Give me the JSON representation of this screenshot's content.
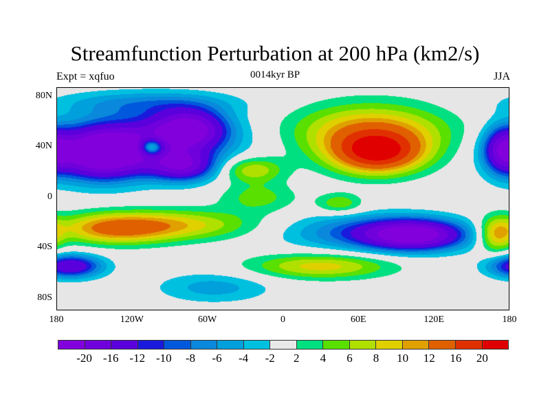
{
  "chart_data": {
    "type": "heatmap",
    "title": "Streamfunction Perturbation at 200 hPa (km2/s)",
    "left_string": "Expt = xqfuo",
    "center_string": "0014kyr BP",
    "right_string": "JJA",
    "x_ticks": [
      "180",
      "120W",
      "60W",
      "0",
      "60E",
      "120E",
      "180"
    ],
    "x_tick_values": [
      -180,
      -120,
      -60,
      0,
      60,
      120,
      180
    ],
    "y_ticks": [
      "80N",
      "40N",
      "0",
      "40S",
      "80S"
    ],
    "y_tick_values": [
      80,
      40,
      0,
      -40,
      -80
    ],
    "xlim": [
      -180,
      180
    ],
    "ylim": [
      -90,
      87
    ],
    "levels": [
      -20,
      -16,
      -12,
      -10,
      -8,
      -6,
      -4,
      -2,
      2,
      4,
      6,
      8,
      10,
      12,
      16,
      20
    ],
    "level_labels": [
      "-20",
      "-16",
      "-12",
      "-10",
      "-8",
      "-6",
      "-4",
      "-2",
      "2",
      "4",
      "6",
      "8",
      "10",
      "12",
      "16",
      "20"
    ],
    "colors": [
      "#8200dc",
      "#7000dc",
      "#5a00dc",
      "#1a1adc",
      "#0058dc",
      "#0a88dc",
      "#00a0dc",
      "#00c0e0",
      "#e8e8e8",
      "#00e080",
      "#5ae000",
      "#b0e000",
      "#e0d000",
      "#e0a000",
      "#e06000",
      "#e03000",
      "#e00000"
    ],
    "background": "#e6e6e6",
    "features": [
      {
        "lon": -145,
        "lat": 35,
        "value": -26,
        "slon": 38,
        "slat": 20
      },
      {
        "lon": 175,
        "lat": 38,
        "value": -14,
        "slon": 15,
        "slat": 18
      },
      {
        "lon": -75,
        "lat": 55,
        "value": -18,
        "slon": 28,
        "slat": 15
      },
      {
        "lon": -80,
        "lat": 25,
        "value": -16,
        "slon": 25,
        "slat": 12
      },
      {
        "lon": -100,
        "lat": 45,
        "value": -12,
        "slon": 60,
        "slat": 22
      },
      {
        "lon": -105,
        "lat": 40,
        "value": 18,
        "slon": 10,
        "slat": 7
      },
      {
        "lon": 75,
        "lat": 35,
        "value": 18,
        "slon": 35,
        "slat": 16
      },
      {
        "lon": 70,
        "lat": 52,
        "value": 12,
        "slon": 60,
        "slat": 22
      },
      {
        "lon": -25,
        "lat": 22,
        "value": 8,
        "slon": 25,
        "slat": 10
      },
      {
        "lon": 45,
        "lat": -5,
        "value": 6,
        "slon": 18,
        "slat": 8
      },
      {
        "lon": -135,
        "lat": -25,
        "value": 12,
        "slon": 45,
        "slat": 12
      },
      {
        "lon": -80,
        "lat": -22,
        "value": 8,
        "slon": 60,
        "slat": 12
      },
      {
        "lon": 105,
        "lat": -30,
        "value": -22,
        "slon": 40,
        "slat": 12
      },
      {
        "lon": 60,
        "lat": -28,
        "value": -8,
        "slon": 60,
        "slat": 14
      },
      {
        "lon": 30,
        "lat": -55,
        "value": 9,
        "slon": 55,
        "slat": 10
      },
      {
        "lon": -170,
        "lat": -55,
        "value": -16,
        "slon": 25,
        "slat": 9
      },
      {
        "lon": -55,
        "lat": -72,
        "value": -5,
        "slon": 45,
        "slat": 12
      },
      {
        "lon": 170,
        "lat": -30,
        "value": 10,
        "slon": 14,
        "slat": 14
      },
      {
        "lon": -20,
        "lat": 0,
        "value": 5,
        "slon": 30,
        "slat": 12
      },
      {
        "lon": -110,
        "lat": 75,
        "value": -6,
        "slon": 70,
        "slat": 10
      }
    ]
  }
}
